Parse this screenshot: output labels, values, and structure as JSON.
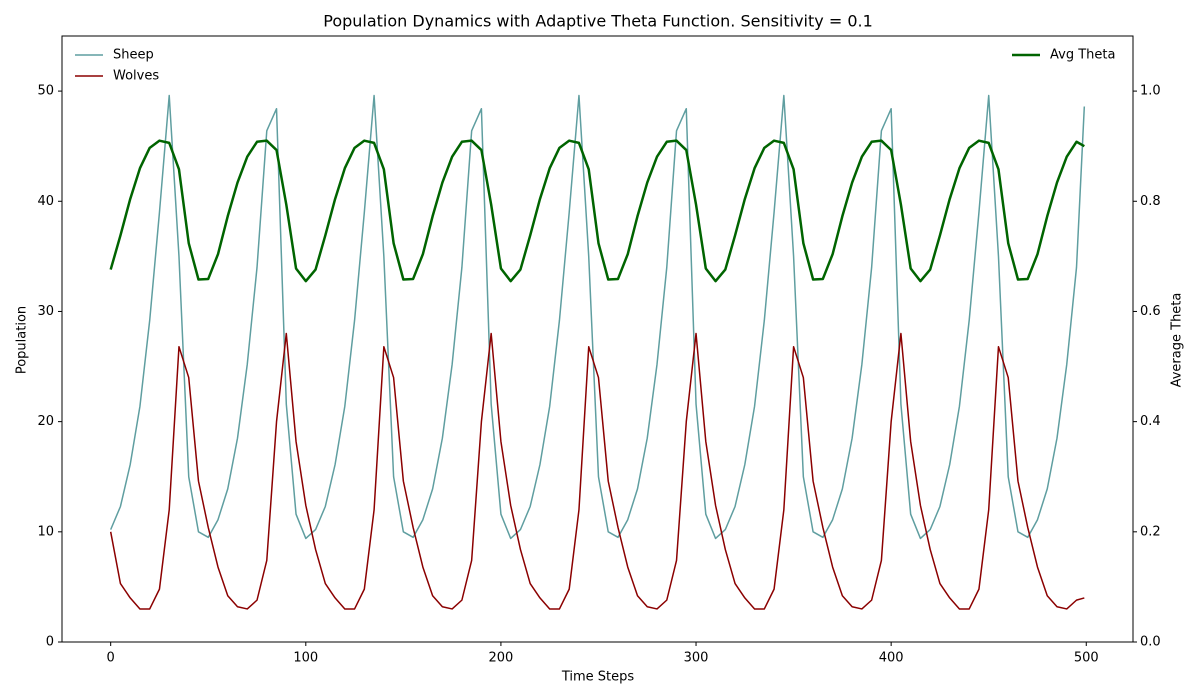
{
  "chart_data": {
    "type": "line",
    "title": "Population Dynamics with Adaptive Theta Function. Sensitivity = 0.1",
    "xlabel": "Time Steps",
    "ylabel": "Population",
    "y2label": "Average Theta",
    "x": [
      0,
      5,
      10,
      15,
      20,
      25,
      30,
      35,
      40,
      45,
      50,
      55,
      60,
      65,
      70,
      75,
      80,
      85,
      90,
      95,
      100,
      105,
      110,
      115,
      120,
      125,
      130,
      135,
      140,
      145,
      150,
      155,
      160,
      165,
      170,
      175,
      180,
      185,
      190,
      195,
      200,
      205,
      210,
      215,
      220,
      225,
      230,
      235,
      240,
      245,
      250,
      255,
      260,
      265,
      270,
      275,
      280,
      285,
      290,
      295,
      300,
      305,
      310,
      315,
      320,
      325,
      330,
      335,
      340,
      345,
      350,
      355,
      360,
      365,
      370,
      375,
      380,
      385,
      390,
      395,
      400,
      405,
      410,
      415,
      420,
      425,
      430,
      435,
      440,
      445,
      450,
      455,
      460,
      465,
      470,
      475,
      480,
      485,
      490,
      495,
      499
    ],
    "series": [
      {
        "name": "Sheep",
        "color": "#5f9ea0",
        "axis": "y",
        "width": 1.5,
        "values": [
          10.2,
          12.3,
          16.1,
          21.4,
          29.2,
          39,
          49.6,
          35,
          15,
          10,
          9.5,
          11.1,
          13.9,
          18.5,
          25.2,
          34,
          46.4,
          48.4,
          21.6,
          11.6,
          9.4,
          10.2,
          12.3,
          16.1,
          21.4,
          29.2,
          39,
          49.6,
          35,
          15,
          10,
          9.5,
          11.1,
          13.9,
          18.5,
          25.2,
          34,
          46.4,
          48.4,
          21.6,
          11.6,
          9.4,
          10.2,
          12.3,
          16.1,
          21.4,
          29.2,
          39,
          49.6,
          35,
          15,
          10,
          9.5,
          11.1,
          13.9,
          18.5,
          25.2,
          34,
          46.4,
          48.4,
          21.6,
          11.6,
          9.4,
          10.2,
          12.3,
          16.1,
          21.4,
          29.2,
          39,
          49.6,
          35,
          15,
          10,
          9.5,
          11.1,
          13.9,
          18.5,
          25.2,
          34,
          46.4,
          48.4,
          21.6,
          11.6,
          9.4,
          10.2,
          12.3,
          16.1,
          21.4,
          29.2,
          39,
          49.6,
          35,
          15,
          10,
          9.5,
          11.1,
          13.9,
          18.5,
          25.2,
          34,
          48.6
        ]
      },
      {
        "name": "Wolves",
        "color": "#8b0000",
        "axis": "y",
        "width": 1.5,
        "values": [
          10,
          5.3,
          4,
          3,
          3,
          4.8,
          12,
          26.8,
          24,
          14.6,
          10.4,
          6.8,
          4.2,
          3.2,
          3,
          3.8,
          7.4,
          20,
          28,
          18.2,
          12.4,
          8.4,
          5.3,
          4,
          3,
          3,
          4.8,
          12,
          26.8,
          24,
          14.6,
          10.4,
          6.8,
          4.2,
          3.2,
          3,
          3.8,
          7.4,
          20,
          28,
          18.2,
          12.4,
          8.4,
          5.3,
          4,
          3,
          3,
          4.8,
          12,
          26.8,
          24,
          14.6,
          10.4,
          6.8,
          4.2,
          3.2,
          3,
          3.8,
          7.4,
          20,
          28,
          18.2,
          12.4,
          8.4,
          5.3,
          4,
          3,
          3,
          4.8,
          12,
          26.8,
          24,
          14.6,
          10.4,
          6.8,
          4.2,
          3.2,
          3,
          3.8,
          7.4,
          20,
          28,
          18.2,
          12.4,
          8.4,
          5.3,
          4,
          3,
          3,
          4.8,
          12,
          26.8,
          24,
          14.6,
          10.4,
          6.8,
          4.2,
          3.2,
          3,
          3.8,
          4
        ]
      },
      {
        "name": "Avg Theta",
        "color": "#006400",
        "axis": "y2",
        "width": 2.5,
        "values": [
          0.676,
          0.738,
          0.804,
          0.86,
          0.897,
          0.91,
          0.906,
          0.858,
          0.724,
          0.658,
          0.659,
          0.704,
          0.773,
          0.834,
          0.881,
          0.908,
          0.91,
          0.893,
          0.794,
          0.678,
          0.655,
          0.676,
          0.738,
          0.804,
          0.86,
          0.897,
          0.91,
          0.906,
          0.858,
          0.724,
          0.658,
          0.659,
          0.704,
          0.773,
          0.834,
          0.881,
          0.908,
          0.91,
          0.893,
          0.794,
          0.678,
          0.655,
          0.676,
          0.738,
          0.804,
          0.86,
          0.897,
          0.91,
          0.906,
          0.858,
          0.724,
          0.658,
          0.659,
          0.704,
          0.773,
          0.834,
          0.881,
          0.908,
          0.91,
          0.893,
          0.794,
          0.678,
          0.655,
          0.676,
          0.738,
          0.804,
          0.86,
          0.897,
          0.91,
          0.906,
          0.858,
          0.724,
          0.658,
          0.659,
          0.704,
          0.773,
          0.834,
          0.881,
          0.908,
          0.91,
          0.893,
          0.794,
          0.678,
          0.655,
          0.676,
          0.738,
          0.804,
          0.86,
          0.897,
          0.91,
          0.906,
          0.858,
          0.724,
          0.658,
          0.659,
          0.704,
          0.773,
          0.834,
          0.881,
          0.908,
          0.9
        ]
      }
    ],
    "xlim": [
      -24.95,
      523.95
    ],
    "xticks": [
      0,
      100,
      200,
      300,
      400,
      500
    ],
    "ylim": [
      0,
      55
    ],
    "yticks": [
      0,
      10,
      20,
      30,
      40,
      50
    ],
    "y2lim": [
      0,
      1.1
    ],
    "y2ticks": [
      {
        "value": 0,
        "label": "0.0"
      },
      0.2,
      0.4,
      0.6,
      0.8,
      {
        "value": 1,
        "label": "1.0"
      }
    ],
    "legend": "upper left",
    "y2legend": "upper right",
    "grid": false
  }
}
